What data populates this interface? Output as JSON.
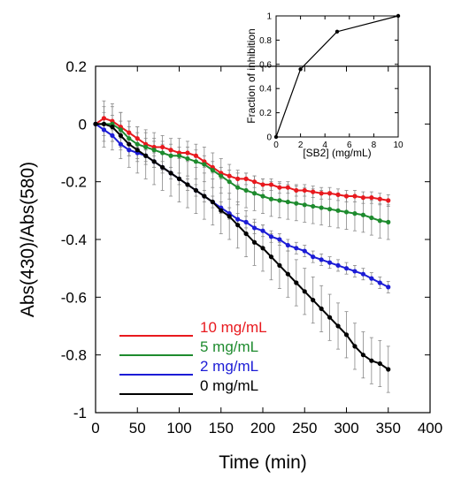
{
  "chart_data": [
    {
      "type": "line",
      "xlabel": "Time (min)",
      "ylabel": "Abs(430)/Abs(580)",
      "xlim": [
        0,
        400
      ],
      "ylim": [
        -1,
        0.2
      ],
      "xticks": [
        "0",
        "50",
        "100",
        "150",
        "200",
        "250",
        "300",
        "350",
        "400"
      ],
      "yticks": [
        "-1",
        "-0.8",
        "-0.6",
        "-0.4",
        "-0.2",
        "0",
        "0.2"
      ],
      "grid": false,
      "legend_position": "bottom-left",
      "x": [
        0,
        10,
        20,
        30,
        40,
        50,
        60,
        70,
        80,
        90,
        100,
        110,
        120,
        130,
        140,
        150,
        160,
        170,
        180,
        190,
        200,
        210,
        220,
        230,
        240,
        250,
        260,
        270,
        280,
        290,
        300,
        310,
        320,
        330,
        340,
        350
      ],
      "series": [
        {
          "name": "10 mg/mL",
          "color": "#e8191e",
          "values": [
            0,
            0.02,
            0.01,
            -0.01,
            -0.03,
            -0.05,
            -0.07,
            -0.08,
            -0.08,
            -0.09,
            -0.1,
            -0.1,
            -0.11,
            -0.13,
            -0.15,
            -0.17,
            -0.18,
            -0.19,
            -0.19,
            -0.2,
            -0.21,
            -0.21,
            -0.22,
            -0.22,
            -0.23,
            -0.23,
            -0.235,
            -0.24,
            -0.24,
            -0.245,
            -0.25,
            -0.25,
            -0.255,
            -0.255,
            -0.26,
            -0.265
          ],
          "error": 0.02
        },
        {
          "name": "5 mg/mL",
          "color": "#1e8b2e",
          "values": [
            0,
            0,
            0.0,
            -0.02,
            -0.05,
            -0.07,
            -0.08,
            -0.09,
            -0.1,
            -0.11,
            -0.11,
            -0.12,
            -0.13,
            -0.14,
            -0.16,
            -0.18,
            -0.2,
            -0.22,
            -0.23,
            -0.24,
            -0.25,
            -0.26,
            -0.265,
            -0.27,
            -0.275,
            -0.28,
            -0.285,
            -0.29,
            -0.295,
            -0.3,
            -0.305,
            -0.31,
            -0.315,
            -0.325,
            -0.335,
            -0.34
          ],
          "error": 0.06
        },
        {
          "name": "2 mg/mL",
          "color": "#1c1cd6",
          "values": [
            0,
            -0.02,
            -0.04,
            -0.07,
            -0.09,
            -0.1,
            -0.11,
            -0.13,
            -0.15,
            -0.17,
            -0.19,
            -0.21,
            -0.23,
            -0.25,
            -0.27,
            -0.29,
            -0.31,
            -0.33,
            -0.34,
            -0.36,
            -0.37,
            -0.39,
            -0.4,
            -0.42,
            -0.43,
            -0.44,
            -0.46,
            -0.47,
            -0.48,
            -0.49,
            -0.5,
            -0.51,
            -0.52,
            -0.535,
            -0.55,
            -0.565
          ],
          "error": 0.02
        },
        {
          "name": "0 mg/mL",
          "color": "#000000",
          "values": [
            0,
            0,
            -0.01,
            -0.04,
            -0.07,
            -0.09,
            -0.11,
            -0.13,
            -0.15,
            -0.17,
            -0.19,
            -0.21,
            -0.23,
            -0.25,
            -0.27,
            -0.3,
            -0.32,
            -0.35,
            -0.38,
            -0.41,
            -0.43,
            -0.46,
            -0.49,
            -0.52,
            -0.55,
            -0.58,
            -0.61,
            -0.64,
            -0.67,
            -0.7,
            -0.73,
            -0.77,
            -0.8,
            -0.82,
            -0.83,
            -0.85
          ],
          "error": 0.08
        }
      ]
    },
    {
      "type": "line",
      "xlabel": "[SB2] (mg/mL)",
      "ylabel": "Fraction of inhibition",
      "xlim": [
        0,
        10
      ],
      "ylim": [
        0,
        1
      ],
      "xticks": [
        "0",
        "2",
        "4",
        "6",
        "8",
        "10"
      ],
      "yticks": [
        "0",
        "0.2",
        "0.4",
        "0.6",
        "0.8",
        "1"
      ],
      "grid": false,
      "x": [
        0,
        2,
        5,
        10
      ],
      "series": [
        {
          "color": "#000000",
          "values": [
            0,
            0.56,
            0.87,
            1
          ]
        }
      ]
    }
  ]
}
